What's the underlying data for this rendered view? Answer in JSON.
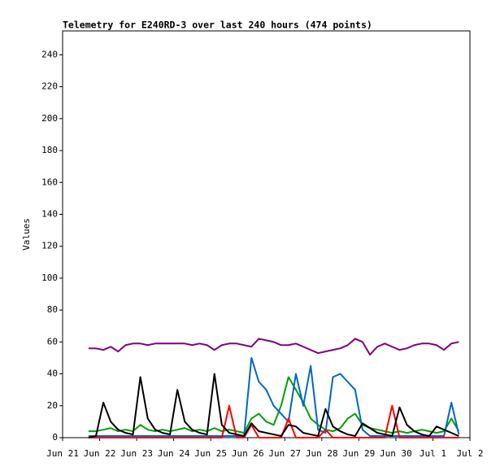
{
  "chart_data": {
    "type": "line",
    "title": "Telemetry for E240RD-3 over last 240 hours (474 points)",
    "y_label": "Values",
    "xlim": [
      0,
      11
    ],
    "xticks": [
      {
        "value": 0,
        "label": "Jun 21"
      },
      {
        "value": 1,
        "label": "Jun 22"
      },
      {
        "value": 2,
        "label": "Jun 23"
      },
      {
        "value": 3,
        "label": "Jun 24"
      },
      {
        "value": 4,
        "label": "Jun 25"
      },
      {
        "value": 5,
        "label": "Jun 26"
      },
      {
        "value": 6,
        "label": "Jun 27"
      },
      {
        "value": 7,
        "label": "Jun 28"
      },
      {
        "value": 8,
        "label": "Jun 29"
      },
      {
        "value": 9,
        "label": "Jun 30"
      },
      {
        "value": 10,
        "label": "Jul 1"
      },
      {
        "value": 11,
        "label": "Jul 2"
      }
    ],
    "ylim": [
      0,
      255
    ],
    "yticks": [
      0,
      20,
      40,
      60,
      80,
      100,
      120,
      140,
      160,
      180,
      200,
      220,
      240
    ],
    "grid": false,
    "x": [
      0.7,
      0.9,
      1.1,
      1.3,
      1.5,
      1.7,
      1.9,
      2.1,
      2.3,
      2.5,
      2.7,
      2.9,
      3.1,
      3.3,
      3.5,
      3.7,
      3.9,
      4.1,
      4.3,
      4.5,
      4.7,
      4.9,
      5.1,
      5.3,
      5.5,
      5.7,
      5.9,
      6.1,
      6.3,
      6.5,
      6.7,
      6.9,
      7.1,
      7.3,
      7.5,
      7.7,
      7.9,
      8.1,
      8.3,
      8.5,
      8.7,
      8.9,
      9.1,
      9.3,
      9.5,
      9.7,
      9.9,
      10.1,
      10.3,
      10.5,
      10.7
    ],
    "series": [
      {
        "color": "#00a000",
        "values": [
          4,
          4,
          5,
          6,
          4,
          5,
          4,
          8,
          5,
          4,
          5,
          4,
          5,
          6,
          4,
          5,
          4,
          6,
          4,
          5,
          4,
          3,
          12,
          15,
          10,
          8,
          20,
          38,
          30,
          22,
          12,
          8,
          5,
          4,
          6,
          12,
          15,
          8,
          6,
          5,
          4,
          3,
          4,
          3,
          4,
          5,
          4,
          3,
          4,
          12,
          4
        ]
      },
      {
        "color": "#0066cc",
        "values": [
          1,
          1,
          1,
          1,
          1,
          1,
          1,
          1,
          1,
          1,
          1,
          1,
          1,
          1,
          1,
          1,
          1,
          1,
          1,
          1,
          1,
          1,
          50,
          35,
          30,
          20,
          15,
          10,
          40,
          20,
          45,
          5,
          3,
          38,
          40,
          35,
          30,
          5,
          1,
          1,
          1,
          1,
          1,
          1,
          1,
          1,
          1,
          1,
          1,
          22,
          2
        ]
      },
      {
        "color": "#800080",
        "values": [
          56,
          56,
          55,
          57,
          54,
          58,
          59,
          59,
          58,
          59,
          59,
          59,
          59,
          59,
          58,
          59,
          58,
          55,
          58,
          59,
          59,
          58,
          57,
          62,
          61,
          60,
          58,
          58,
          59,
          57,
          55,
          53,
          54,
          55,
          56,
          58,
          62,
          60,
          52,
          57,
          59,
          57,
          55,
          56,
          58,
          59,
          59,
          58,
          55,
          59,
          60
        ]
      },
      {
        "color": "#ff0000",
        "values": [
          0,
          0,
          0,
          0,
          0,
          0,
          0,
          0,
          0,
          0,
          0,
          0,
          0,
          0,
          0,
          0,
          0,
          0,
          0,
          20,
          0,
          0,
          8,
          0,
          0,
          0,
          0,
          12,
          0,
          0,
          0,
          0,
          5,
          0,
          0,
          0,
          0,
          0,
          0,
          0,
          0,
          20,
          0,
          0,
          0,
          0,
          0,
          0,
          0,
          0,
          0
        ]
      },
      {
        "color": "#000000",
        "values": [
          0,
          1,
          22,
          10,
          5,
          3,
          2,
          38,
          12,
          5,
          3,
          2,
          30,
          10,
          5,
          3,
          2,
          40,
          8,
          3,
          2,
          1,
          9,
          4,
          3,
          2,
          1,
          8,
          7,
          3,
          2,
          1,
          18,
          7,
          4,
          2,
          1,
          9,
          6,
          3,
          2,
          1,
          19,
          8,
          4,
          2,
          1,
          7,
          5,
          3,
          1
        ]
      }
    ]
  }
}
